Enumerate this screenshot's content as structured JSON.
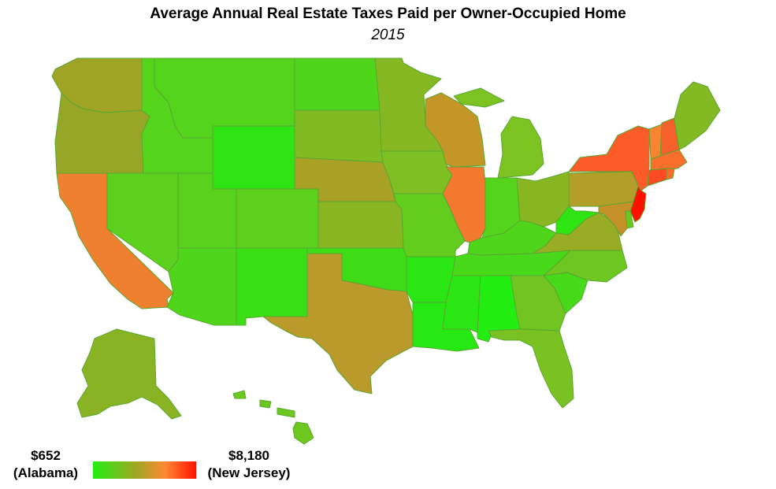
{
  "title": "Average Annual Real Estate Taxes Paid per Owner-Occupied Home",
  "subtitle": "2015",
  "legend": {
    "min_value": "$652",
    "min_state": "(Alabama)",
    "max_value": "$8,180",
    "max_state": "(New Jersey)",
    "low_color": "#22ee11",
    "high_color": "#ff1100"
  },
  "chart_data": {
    "type": "choropleth",
    "scale": {
      "min": 652,
      "max": 8180
    },
    "values": {
      "Alabama": 652,
      "New Jersey": 8180
    }
  },
  "states": [
    {
      "name": "Washington",
      "color": "#a0a425"
    },
    {
      "name": "Oregon",
      "color": "#97a626"
    },
    {
      "name": "California",
      "color": "#ee8030"
    },
    {
      "name": "Idaho",
      "color": "#55d41c"
    },
    {
      "name": "Nevada",
      "color": "#5cd11d"
    },
    {
      "name": "Utah",
      "color": "#58d21c"
    },
    {
      "name": "Arizona",
      "color": "#4fd61b"
    },
    {
      "name": "Montana",
      "color": "#55d41c"
    },
    {
      "name": "Wyoming",
      "color": "#30e413"
    },
    {
      "name": "Colorado",
      "color": "#5dcf1d"
    },
    {
      "name": "New Mexico",
      "color": "#3ade15"
    },
    {
      "name": "North Dakota",
      "color": "#4fd61b"
    },
    {
      "name": "South Dakota",
      "color": "#80bb21"
    },
    {
      "name": "Nebraska",
      "color": "#a9a026"
    },
    {
      "name": "Kansas",
      "color": "#8ab523"
    },
    {
      "name": "Oklahoma",
      "color": "#3ddc16"
    },
    {
      "name": "Texas",
      "color": "#b99a2a"
    },
    {
      "name": "Minnesota",
      "color": "#85b822"
    },
    {
      "name": "Iowa",
      "color": "#7ec021"
    },
    {
      "name": "Missouri",
      "color": "#63cd1e"
    },
    {
      "name": "Arkansas",
      "color": "#2ae612"
    },
    {
      "name": "Louisiana",
      "color": "#26e812"
    },
    {
      "name": "Wisconsin",
      "color": "#c49628"
    },
    {
      "name": "Illinois",
      "color": "#f3792f"
    },
    {
      "name": "Michigan",
      "color": "#7cc221"
    },
    {
      "name": "Indiana",
      "color": "#55d41c"
    },
    {
      "name": "Ohio",
      "color": "#89b623"
    },
    {
      "name": "Kentucky",
      "color": "#4fd61b"
    },
    {
      "name": "Tennessee",
      "color": "#48d91a"
    },
    {
      "name": "Mississippi",
      "color": "#2ae612"
    },
    {
      "name": "Alabama",
      "color": "#22ee11"
    },
    {
      "name": "Georgia",
      "color": "#72c420"
    },
    {
      "name": "Florida",
      "color": "#7ac221"
    },
    {
      "name": "South Carolina",
      "color": "#46da19"
    },
    {
      "name": "North Carolina",
      "color": "#6ec620"
    },
    {
      "name": "Virginia",
      "color": "#98ad24"
    },
    {
      "name": "West Virginia",
      "color": "#2ee412"
    },
    {
      "name": "Pennsylvania",
      "color": "#b29e28"
    },
    {
      "name": "New York",
      "color": "#fb5c27"
    },
    {
      "name": "Vermont",
      "color": "#fa842f"
    },
    {
      "name": "New Hampshire",
      "color": "#f6602a"
    },
    {
      "name": "Maine",
      "color": "#83b922"
    },
    {
      "name": "Massachusetts",
      "color": "#fa6f2c"
    },
    {
      "name": "Connecticut",
      "color": "#fc4a23"
    },
    {
      "name": "Rhode Island",
      "color": "#fc6a2a"
    },
    {
      "name": "New Jersey",
      "color": "#ff1100"
    },
    {
      "name": "Delaware",
      "color": "#6ac81f"
    },
    {
      "name": "Maryland",
      "color": "#c69028"
    },
    {
      "name": "Alaska",
      "color": "#8ab323"
    },
    {
      "name": "Hawaii",
      "color": "#6cc81f"
    }
  ]
}
